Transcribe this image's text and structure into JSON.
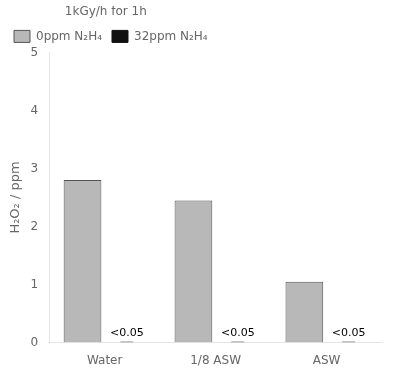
{
  "chart_data": {
    "type": "bar",
    "ylabel": "H₂O₂ / ppm",
    "categories": [
      "Water",
      "1/8 ASW",
      "ASW"
    ],
    "series": [
      {
        "name": "0ppm N₂H₄",
        "color": "#b8b8b8",
        "values": [
          2.8,
          2.45,
          1.05
        ]
      },
      {
        "name": "32ppm N₂H₄",
        "color": "#111111",
        "values": [
          0.018,
          0.018,
          0.018
        ],
        "value_labels": [
          "<0.05",
          "<0.05",
          "<0.05"
        ]
      }
    ],
    "legend_title": "1kGy/h for 1h",
    "legend": "upper left",
    "ylim": [
      0,
      5
    ],
    "yticks": [
      0,
      1,
      2,
      3,
      4,
      5
    ],
    "grid": false
  }
}
